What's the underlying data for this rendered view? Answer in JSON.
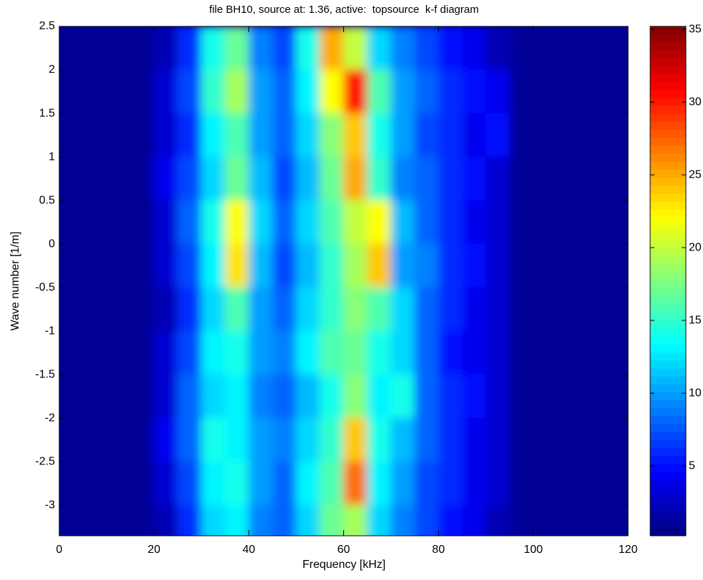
{
  "chart_data": {
    "type": "contour",
    "title": "file BH10, source at: 1.36, active:  topsource  k-f diagram",
    "x_label": "Frequency [kHz]",
    "y_label": "Wave number [1/m]",
    "colormap": "jet",
    "xlim": [
      0,
      120
    ],
    "ylim": [
      -3.35,
      2.5
    ],
    "xticks": [
      0,
      20,
      40,
      60,
      80,
      100,
      120
    ],
    "yticks": [
      -3,
      -2.5,
      -2,
      -1.5,
      -1,
      -0.5,
      0,
      0.5,
      1,
      1.5,
      2,
      2.5
    ],
    "zlim": [
      0.2,
      35.2
    ],
    "colorbar_ticks": [
      5,
      10,
      15,
      20,
      25,
      30,
      35
    ],
    "x": [
      2.5,
      7.5,
      12.5,
      17.5,
      22.5,
      27.5,
      32.5,
      37.5,
      42.5,
      47.5,
      52.5,
      57.5,
      62.5,
      67.5,
      72.5,
      77.5,
      82.5,
      87.5,
      92.5,
      97.5,
      102.5,
      107.5,
      112.5,
      117.5
    ],
    "y": [
      2.25,
      1.75,
      1.25,
      0.75,
      0.25,
      -0.25,
      -0.75,
      -1.25,
      -1.75,
      -2.25,
      -2.75,
      -3.25
    ],
    "z": [
      [
        1,
        1,
        1,
        1,
        2,
        6,
        14,
        17,
        9,
        7,
        14,
        25,
        20,
        12,
        9,
        7,
        5,
        4,
        2,
        1,
        1,
        1,
        1,
        1
      ],
      [
        1,
        1,
        1,
        1,
        3,
        7,
        15,
        19,
        10,
        8,
        13,
        22,
        30,
        16,
        10,
        8,
        6,
        5,
        4,
        1,
        1,
        1,
        1,
        1
      ],
      [
        1,
        1,
        1,
        1,
        3,
        6,
        13,
        16,
        10,
        8,
        12,
        18,
        24,
        14,
        10,
        7,
        6,
        4,
        5,
        1,
        1,
        1,
        1,
        1
      ],
      [
        1,
        1,
        1,
        1,
        4,
        7,
        12,
        17,
        11,
        7,
        11,
        17,
        25,
        15,
        9,
        8,
        6,
        5,
        3,
        1,
        1,
        1,
        1,
        1
      ],
      [
        1,
        1,
        1,
        1,
        3,
        8,
        14,
        22,
        12,
        8,
        12,
        16,
        20,
        22,
        11,
        8,
        6,
        4,
        3,
        1,
        1,
        1,
        1,
        1
      ],
      [
        1,
        1,
        1,
        1,
        3,
        7,
        13,
        23,
        11,
        7,
        11,
        15,
        19,
        24,
        10,
        9,
        6,
        5,
        3,
        1,
        1,
        1,
        1,
        1
      ],
      [
        1,
        1,
        1,
        1,
        2,
        6,
        12,
        16,
        10,
        8,
        12,
        15,
        18,
        16,
        12,
        8,
        6,
        4,
        3,
        1,
        1,
        1,
        1,
        1
      ],
      [
        1,
        1,
        1,
        1,
        3,
        7,
        13,
        14,
        10,
        9,
        13,
        16,
        17,
        14,
        12,
        8,
        5,
        4,
        3,
        1,
        1,
        1,
        1,
        1
      ],
      [
        1,
        1,
        1,
        1,
        3,
        8,
        12,
        13,
        9,
        8,
        11,
        14,
        18,
        13,
        14,
        8,
        6,
        5,
        3,
        1,
        1,
        1,
        1,
        1
      ],
      [
        1,
        1,
        1,
        1,
        4,
        8,
        14,
        13,
        10,
        9,
        12,
        15,
        24,
        14,
        11,
        8,
        6,
        4,
        3,
        1,
        1,
        1,
        1,
        1
      ],
      [
        1,
        1,
        1,
        1,
        3,
        7,
        13,
        14,
        10,
        8,
        13,
        16,
        27,
        13,
        10,
        7,
        6,
        4,
        3,
        1,
        1,
        1,
        1,
        1
      ],
      [
        1,
        1,
        1,
        1,
        2,
        6,
        12,
        13,
        9,
        8,
        12,
        17,
        19,
        12,
        9,
        7,
        5,
        4,
        2,
        1,
        1,
        1,
        1,
        1
      ]
    ]
  }
}
